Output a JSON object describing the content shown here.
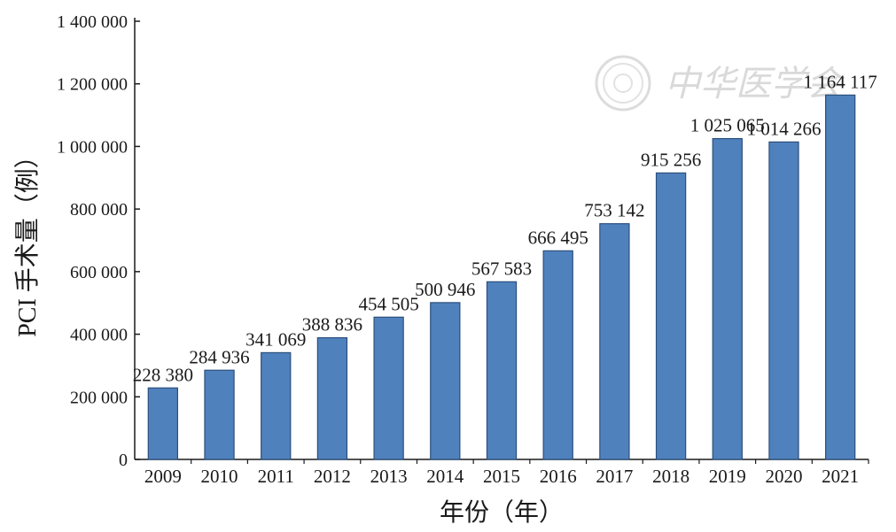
{
  "chart_data": {
    "type": "bar",
    "title": "",
    "xlabel": "年份（年）",
    "ylabel": "PCI 手术量（例）",
    "ylim": [
      0,
      1400000
    ],
    "yticks": [
      0,
      200000,
      400000,
      600000,
      800000,
      1000000,
      1200000,
      1400000
    ],
    "ytick_labels": [
      "0",
      "200 000",
      "400 000",
      "600 000",
      "800 000",
      "1 000 000",
      "1 200 000",
      "1 400 000"
    ],
    "categories": [
      "2009",
      "2010",
      "2011",
      "2012",
      "2013",
      "2014",
      "2015",
      "2016",
      "2017",
      "2018",
      "2019",
      "2020",
      "2021"
    ],
    "values": [
      228380,
      284936,
      341069,
      388836,
      454505,
      500946,
      567583,
      666495,
      753142,
      915256,
      1025065,
      1014266,
      1164117
    ],
    "data_labels": [
      "228 380",
      "284 936",
      "341 069",
      "388 836",
      "454 505",
      "500 946",
      "567 583",
      "666 495",
      "753 142",
      "915 256",
      "1 025 065",
      "1 014 266",
      "1 164 117"
    ],
    "bar_color": "#4f81bd",
    "bar_edge_color": "#2c4f7c",
    "grid": false,
    "legend": "none"
  },
  "watermark": {
    "text": "中华医学会",
    "icon": "society-seal-icon"
  }
}
